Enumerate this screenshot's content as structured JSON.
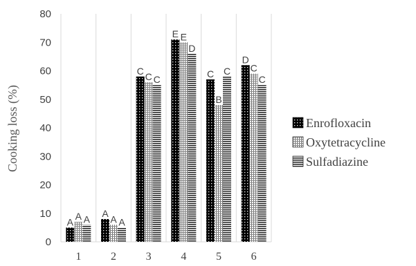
{
  "chart_data": {
    "type": "bar",
    "title": "",
    "xlabel": "",
    "ylabel": "Cooking loss (%)",
    "ylim": [
      0,
      80
    ],
    "yticks": [
      0,
      10,
      20,
      30,
      40,
      50,
      60,
      70,
      80
    ],
    "grid": "vertical category separators",
    "legend_position": "right",
    "categories": [
      "1",
      "2",
      "3",
      "4",
      "5",
      "6"
    ],
    "series": [
      {
        "name": "Enrofloxacin",
        "pattern": "dots-on-black",
        "color": "#000000",
        "values": [
          5,
          8,
          58,
          71,
          57,
          62
        ],
        "labels": [
          "A",
          "A",
          "C",
          "E",
          "C",
          "D"
        ]
      },
      {
        "name": "Oxytetracycline",
        "pattern": "fine-grid",
        "color": "#808080",
        "values": [
          7,
          6,
          56,
          70,
          48,
          59
        ],
        "labels": [
          "A",
          "A",
          "C",
          "E",
          "B",
          "C"
        ]
      },
      {
        "name": "Sulfadiazine",
        "pattern": "horizontal-lines",
        "color": "#404040",
        "values": [
          6,
          5,
          55,
          66,
          58,
          55
        ],
        "labels": [
          "A",
          "A",
          "C",
          "D",
          "C",
          "C"
        ]
      }
    ]
  }
}
